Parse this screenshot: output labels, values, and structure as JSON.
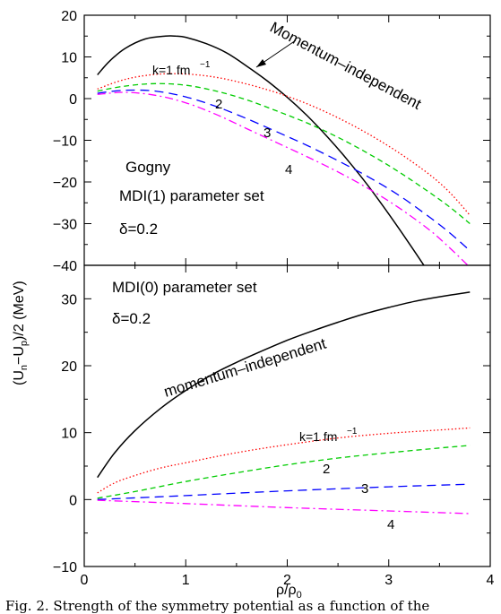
{
  "chart_data": [
    {
      "type": "line",
      "panel": "top",
      "xlim": [
        0,
        4
      ],
      "ylim": [
        -40,
        20
      ],
      "x_ticks": [
        "0",
        "1",
        "2",
        "3",
        "4"
      ],
      "y_ticks": [
        "20",
        "10",
        "0",
        "−10",
        "−20",
        "−30",
        "−40"
      ],
      "annotations": [
        "Momentum–independent",
        "k=1 fm",
        "−1",
        "2",
        "3",
        "4",
        "Gogny",
        "MDI(1) parameter set",
        "δ=0.2"
      ],
      "series": [
        {
          "label": "Momentum–independent",
          "color": "#000000",
          "dash": "solid",
          "x": [
            0.13,
            0.25,
            0.4,
            0.6,
            0.8,
            0.9,
            1.0,
            1.2,
            1.4,
            1.6,
            1.8,
            2.0,
            2.2,
            2.4,
            2.6,
            2.8,
            3.0,
            3.2,
            3.4,
            3.5
          ],
          "y": [
            5.7,
            9.0,
            12.0,
            14.3,
            15.0,
            15.0,
            14.7,
            13.2,
            11.0,
            7.8,
            4.3,
            0.3,
            -4.2,
            -9.3,
            -14.9,
            -21.0,
            -27.7,
            -34.7,
            -42.0,
            -45.8
          ]
        },
        {
          "label": "k=1 fm−1",
          "color": "#ff0000",
          "dash": "dotted",
          "x": [
            0.13,
            0.4,
            0.7,
            1.0,
            1.3,
            1.6,
            1.9,
            2.2,
            2.5,
            2.8,
            3.1,
            3.4,
            3.6,
            3.8
          ],
          "y": [
            2.3,
            4.6,
            5.8,
            5.9,
            5.1,
            3.5,
            1.4,
            -1.3,
            -4.6,
            -8.5,
            -13.0,
            -18.2,
            -22.5,
            -28.0
          ]
        },
        {
          "label": "2",
          "color": "#00cc00",
          "dash": "dashed",
          "x": [
            0.13,
            0.4,
            0.7,
            1.0,
            1.3,
            1.6,
            1.9,
            2.2,
            2.5,
            2.8,
            3.1,
            3.4,
            3.6,
            3.8
          ],
          "y": [
            1.8,
            3.0,
            3.6,
            3.2,
            1.8,
            -0.3,
            -3.0,
            -5.9,
            -9.3,
            -13.2,
            -17.6,
            -22.5,
            -26.0,
            -30.0
          ]
        },
        {
          "label": "3",
          "color": "#0000ff",
          "dash": "long-dashed",
          "x": [
            0.13,
            0.4,
            0.7,
            1.0,
            1.3,
            1.6,
            1.9,
            2.2,
            2.5,
            2.8,
            3.1,
            3.4,
            3.6,
            3.8
          ],
          "y": [
            1.3,
            2.0,
            1.8,
            0.4,
            -1.9,
            -4.8,
            -8.0,
            -11.3,
            -14.9,
            -18.8,
            -23.2,
            -28.4,
            -32.2,
            -36.5
          ]
        },
        {
          "label": "4",
          "color": "#ff00ff",
          "dash": "dash-dot",
          "x": [
            0.13,
            0.4,
            0.7,
            1.0,
            1.3,
            1.6,
            1.9,
            2.2,
            2.5,
            2.8,
            3.1,
            3.4,
            3.6,
            3.8
          ],
          "y": [
            1.0,
            1.5,
            0.8,
            -1.0,
            -3.8,
            -7.2,
            -10.6,
            -14.0,
            -17.6,
            -21.6,
            -26.2,
            -31.5,
            -35.8,
            -40.5
          ]
        }
      ]
    },
    {
      "type": "line",
      "panel": "bottom",
      "xlim": [
        0,
        4
      ],
      "ylim": [
        -10,
        35
      ],
      "x_ticks": [
        "0",
        "1",
        "2",
        "3",
        "4"
      ],
      "y_ticks": [
        "30",
        "20",
        "10",
        "0",
        "−10"
      ],
      "annotations": [
        "MDI(0) parameter set",
        "δ=0.2",
        "momentum–independent",
        "k=1 fm",
        "−1",
        "2",
        "3",
        "4"
      ],
      "series": [
        {
          "label": "momentum–independent",
          "color": "#000000",
          "dash": "solid",
          "x": [
            0.13,
            0.3,
            0.5,
            0.75,
            1.0,
            1.25,
            1.5,
            1.75,
            2.0,
            2.25,
            2.5,
            2.75,
            3.0,
            3.25,
            3.5,
            3.8
          ],
          "y": [
            3.3,
            7.0,
            10.3,
            13.6,
            16.3,
            18.6,
            20.5,
            22.2,
            23.8,
            25.2,
            26.5,
            27.7,
            28.7,
            29.6,
            30.3,
            31.0
          ]
        },
        {
          "label": "k=1 fm−1",
          "color": "#ff0000",
          "dash": "dotted",
          "x": [
            0.13,
            0.3,
            0.5,
            0.75,
            1.0,
            1.5,
            2.0,
            2.5,
            3.0,
            3.5,
            3.8
          ],
          "y": [
            1.0,
            2.5,
            3.6,
            4.7,
            5.5,
            7.0,
            8.2,
            9.2,
            9.9,
            10.4,
            10.7
          ]
        },
        {
          "label": "2",
          "color": "#00cc00",
          "dash": "dashed",
          "x": [
            0.13,
            0.5,
            1.0,
            1.5,
            2.0,
            2.5,
            3.0,
            3.5,
            3.8
          ],
          "y": [
            0.2,
            1.2,
            2.7,
            4.0,
            5.2,
            6.2,
            7.0,
            7.7,
            8.1
          ]
        },
        {
          "label": "3",
          "color": "#0000ff",
          "dash": "long-dashed",
          "x": [
            0.13,
            1.0,
            2.0,
            3.0,
            3.8
          ],
          "y": [
            0.0,
            0.6,
            1.3,
            1.9,
            2.3
          ]
        },
        {
          "label": "4",
          "color": "#ff00ff",
          "dash": "dash-dot",
          "x": [
            0.13,
            1.0,
            2.0,
            3.0,
            3.8
          ],
          "y": [
            -0.1,
            -0.6,
            -1.2,
            -1.7,
            -2.1
          ]
        }
      ]
    }
  ],
  "y_axis_title": "(U",
  "y_axis_sub_n": "n",
  "y_axis_minus": "−U",
  "y_axis_sub_p": "p",
  "y_axis_rest": ")/2 (MeV)",
  "x_axis_title": "ρ/ρ",
  "x_axis_sub": "0",
  "caption": "Fig. 2. Strength of the symmetry potential as a function of the"
}
